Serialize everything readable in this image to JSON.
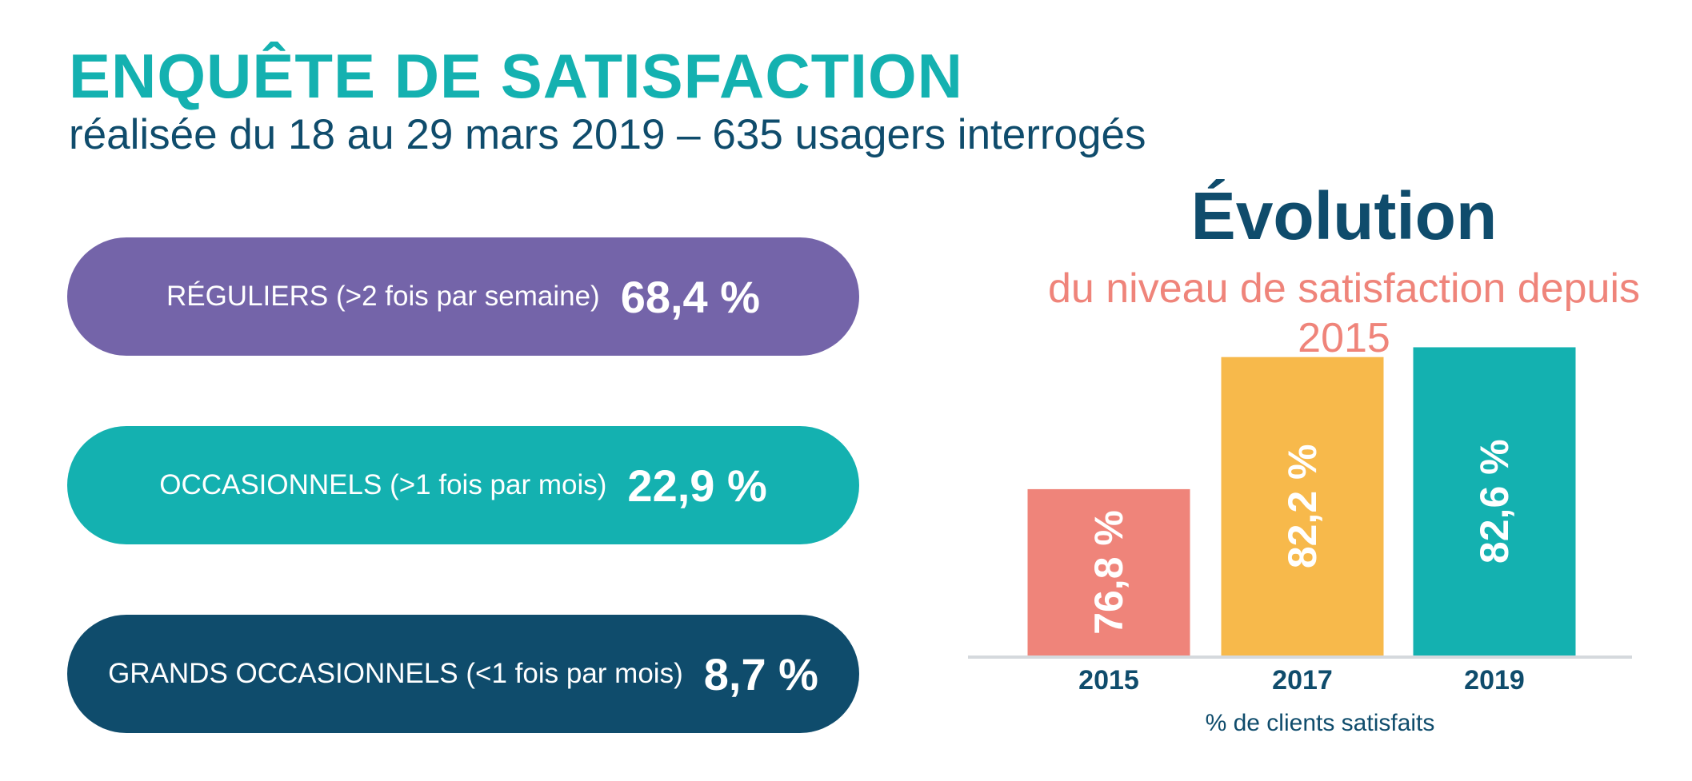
{
  "header": {
    "title": "ENQUÊTE DE SATISFACTION",
    "subtitle": "réalisée du 18 au 29 mars 2019 – 635 usagers interrogés"
  },
  "segments": [
    {
      "category": "RÉGULIERS",
      "detail": "(>2 fois par semaine)",
      "value": "68,4 %",
      "color": "#7464a9"
    },
    {
      "category": "OCCASIONNELS",
      "detail": "(>1 fois par mois)",
      "value": "22,9 %",
      "color": "#14b1b0"
    },
    {
      "category": "GRANDS OCCASIONNELS",
      "detail": "(<1 fois par mois)",
      "value": "8,7 %",
      "color": "#0f4c6c"
    }
  ],
  "chart_data": {
    "type": "bar",
    "title": "Évolution",
    "subtitle": "du niveau de satisfaction depuis 2015",
    "categories": [
      "2015",
      "2017",
      "2019"
    ],
    "values": [
      76.8,
      82.2,
      82.6
    ],
    "value_labels": [
      "76,8 %",
      "82,2 %",
      "82,6 %"
    ],
    "colors": [
      "#ef847a",
      "#f7b94b",
      "#14b1b0"
    ],
    "xlabel": "% de clients satisfaits",
    "ylabel": "",
    "grid": false,
    "axis_color": "#d5d9dd",
    "tick_color": "#0f4c6c"
  }
}
